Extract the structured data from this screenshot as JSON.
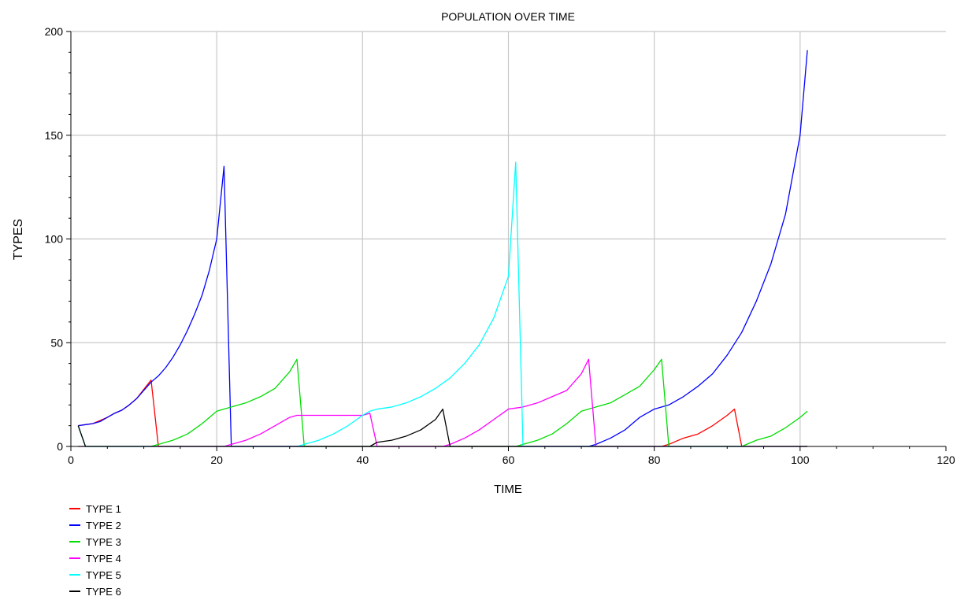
{
  "chart_data": {
    "type": "line",
    "title": "POPULATION OVER TIME",
    "xlabel": "TIME",
    "ylabel": "TYPES",
    "xlim": [
      0,
      120
    ],
    "ylim": [
      0,
      200
    ],
    "xticks": [
      0,
      20,
      40,
      60,
      80,
      100,
      120
    ],
    "yticks": [
      0,
      50,
      100,
      150,
      200
    ],
    "grid": true,
    "legend_position": "bottom-left",
    "series": [
      {
        "name": "TYPE 1",
        "color": "#ff0000",
        "points": [
          [
            1,
            10
          ],
          [
            2,
            10.5
          ],
          [
            3,
            11
          ],
          [
            4,
            12.5
          ],
          [
            5,
            14
          ],
          [
            6,
            16
          ],
          [
            7,
            17.5
          ],
          [
            8,
            20
          ],
          [
            9,
            23
          ],
          [
            10,
            27.5
          ],
          [
            11,
            32
          ],
          [
            12,
            0
          ],
          [
            30,
            0
          ],
          [
            50,
            0
          ],
          [
            70,
            0
          ],
          [
            80,
            0
          ],
          [
            81,
            0
          ],
          [
            82,
            1
          ],
          [
            84,
            4
          ],
          [
            86,
            6
          ],
          [
            88,
            10
          ],
          [
            90,
            15
          ],
          [
            91,
            18
          ],
          [
            92,
            0
          ],
          [
            101,
            0
          ]
        ]
      },
      {
        "name": "TYPE 2",
        "color": "#0000ff",
        "points": [
          [
            1,
            10
          ],
          [
            2,
            10.5
          ],
          [
            3,
            11
          ],
          [
            4,
            12
          ],
          [
            5,
            14
          ],
          [
            6,
            16
          ],
          [
            7,
            17.5
          ],
          [
            8,
            20
          ],
          [
            9,
            23
          ],
          [
            10,
            27
          ],
          [
            11,
            31
          ],
          [
            12,
            34
          ],
          [
            13,
            38
          ],
          [
            14,
            43
          ],
          [
            15,
            49
          ],
          [
            16,
            56
          ],
          [
            17,
            64
          ],
          [
            18,
            73
          ],
          [
            19,
            85
          ],
          [
            20,
            100
          ],
          [
            21,
            135
          ],
          [
            22,
            0
          ],
          [
            40,
            0
          ],
          [
            60,
            0
          ],
          [
            71,
            0
          ],
          [
            72,
            1
          ],
          [
            74,
            4
          ],
          [
            76,
            8
          ],
          [
            78,
            14
          ],
          [
            80,
            18
          ],
          [
            82,
            20
          ],
          [
            84,
            24
          ],
          [
            86,
            29
          ],
          [
            88,
            35
          ],
          [
            90,
            44
          ],
          [
            92,
            55
          ],
          [
            94,
            70
          ],
          [
            96,
            88
          ],
          [
            98,
            112
          ],
          [
            100,
            150
          ],
          [
            101,
            191
          ]
        ]
      },
      {
        "name": "TYPE 3",
        "color": "#00dd00",
        "points": [
          [
            1,
            0
          ],
          [
            11,
            0
          ],
          [
            12,
            1
          ],
          [
            14,
            3
          ],
          [
            16,
            6
          ],
          [
            18,
            11
          ],
          [
            20,
            17
          ],
          [
            22,
            19
          ],
          [
            24,
            21
          ],
          [
            26,
            24
          ],
          [
            28,
            28
          ],
          [
            30,
            36
          ],
          [
            31,
            42
          ],
          [
            32,
            0
          ],
          [
            61,
            0
          ],
          [
            62,
            1
          ],
          [
            64,
            3
          ],
          [
            66,
            6
          ],
          [
            68,
            11
          ],
          [
            70,
            17
          ],
          [
            72,
            19
          ],
          [
            74,
            21
          ],
          [
            76,
            25
          ],
          [
            78,
            29
          ],
          [
            80,
            37
          ],
          [
            81,
            42
          ],
          [
            82,
            0
          ],
          [
            92,
            0
          ],
          [
            94,
            3
          ],
          [
            96,
            5
          ],
          [
            98,
            9
          ],
          [
            100,
            14
          ],
          [
            101,
            17
          ]
        ]
      },
      {
        "name": "TYPE 4",
        "color": "#ff00ff",
        "points": [
          [
            1,
            0
          ],
          [
            21,
            0
          ],
          [
            22,
            1
          ],
          [
            24,
            3
          ],
          [
            26,
            6
          ],
          [
            28,
            10
          ],
          [
            30,
            14
          ],
          [
            31,
            15
          ],
          [
            35,
            15
          ],
          [
            40,
            15
          ],
          [
            41,
            16
          ],
          [
            42,
            0
          ],
          [
            51,
            0
          ],
          [
            52,
            1
          ],
          [
            54,
            4
          ],
          [
            56,
            8
          ],
          [
            58,
            13
          ],
          [
            60,
            18
          ],
          [
            62,
            19
          ],
          [
            64,
            21
          ],
          [
            66,
            24
          ],
          [
            68,
            27
          ],
          [
            70,
            35
          ],
          [
            71,
            42
          ],
          [
            72,
            0
          ],
          [
            101,
            0
          ]
        ]
      },
      {
        "name": "TYPE 5",
        "color": "#00ffff",
        "points": [
          [
            1,
            10
          ],
          [
            2,
            0
          ],
          [
            31,
            0
          ],
          [
            32,
            1
          ],
          [
            34,
            3
          ],
          [
            36,
            6
          ],
          [
            38,
            10
          ],
          [
            40,
            15
          ],
          [
            41,
            17
          ],
          [
            42,
            18
          ],
          [
            44,
            19
          ],
          [
            46,
            21
          ],
          [
            48,
            24
          ],
          [
            50,
            28
          ],
          [
            52,
            33
          ],
          [
            54,
            40
          ],
          [
            56,
            49
          ],
          [
            58,
            62
          ],
          [
            60,
            82
          ],
          [
            61,
            137
          ],
          [
            62,
            0
          ],
          [
            101,
            0
          ]
        ]
      },
      {
        "name": "TYPE 6",
        "color": "#000000",
        "points": [
          [
            1,
            10
          ],
          [
            2,
            0
          ],
          [
            41,
            0
          ],
          [
            42,
            2
          ],
          [
            44,
            3
          ],
          [
            46,
            5
          ],
          [
            48,
            8
          ],
          [
            50,
            13
          ],
          [
            51,
            18
          ],
          [
            52,
            0
          ],
          [
            101,
            0
          ]
        ]
      }
    ]
  }
}
